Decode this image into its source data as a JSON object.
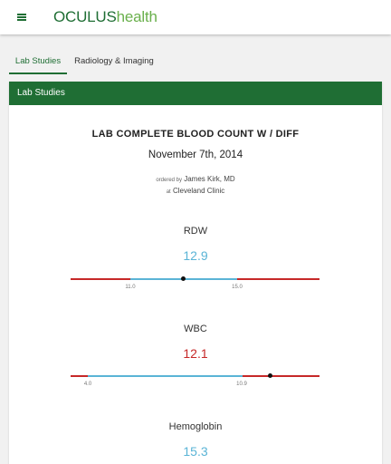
{
  "app": {
    "brand_part1": "OCULUS",
    "brand_part2": "health",
    "menu_icon": "hamburger-menu-icon"
  },
  "tabs": [
    {
      "label": "Lab Studies",
      "active": true
    },
    {
      "label": "Radiology & Imaging",
      "active": false
    }
  ],
  "card": {
    "header": "Lab Studies",
    "report_title": "LAB COMPLETE BLOOD COUNT W / DIFF",
    "date": "November 7th, 2014",
    "ordered_by_prefix": "ordered by",
    "ordered_by": "James Kirk, MD",
    "location_prefix": "at",
    "location": "Cleveland Clinic"
  },
  "metrics": [
    {
      "name": "RDW",
      "value": "12.9",
      "status": "normal",
      "range_low": "11.0",
      "range_high": "15.0",
      "value_fraction": 0.45
    },
    {
      "name": "WBC",
      "value": "12.1",
      "status": "high",
      "range_low": "4.0",
      "range_high": "10.9",
      "value_fraction": 0.8
    },
    {
      "name": "Hemoglobin",
      "value": "15.3",
      "status": "normal"
    }
  ],
  "colors": {
    "brand_dark": "#1f6e34",
    "brand_light": "#6ab04c",
    "header_bg": "#1f6e34",
    "normal_value": "#5ab4d6",
    "abnormal_value": "#c62828",
    "out_of_range_line": "#c62828",
    "in_range_line": "#5ab4d6"
  }
}
